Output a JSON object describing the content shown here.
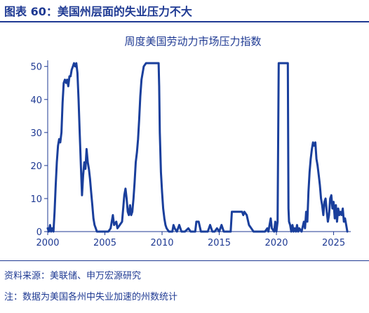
{
  "figure": {
    "title": "图表 60：美国州层面的失业压力不大",
    "source": "资料来源：美联储、申万宏源研究",
    "note": "注：数据为美国各州中失业加速的州数统计",
    "accent_color": "#1f3a93",
    "line_color": "#1a3f9c"
  },
  "chart_data": {
    "type": "line",
    "title": "周度美国劳动力市场压力指数",
    "xlabel": "",
    "ylabel": "",
    "xlim": [
      2000,
      2026.5
    ],
    "ylim": [
      0,
      51
    ],
    "x_ticks": [
      2000,
      2005,
      2010,
      2015,
      2020,
      2025
    ],
    "y_ticks": [
      0,
      10,
      20,
      30,
      40,
      50
    ],
    "grid": false,
    "series": [
      {
        "name": "",
        "points": [
          [
            2000.0,
            1
          ],
          [
            2000.1,
            0
          ],
          [
            2000.2,
            2
          ],
          [
            2000.3,
            0
          ],
          [
            2000.4,
            1
          ],
          [
            2000.5,
            0
          ],
          [
            2000.6,
            6
          ],
          [
            2000.7,
            14
          ],
          [
            2000.8,
            21
          ],
          [
            2000.9,
            26
          ],
          [
            2001.0,
            28
          ],
          [
            2001.1,
            27
          ],
          [
            2001.2,
            30
          ],
          [
            2001.3,
            39
          ],
          [
            2001.4,
            45
          ],
          [
            2001.5,
            46
          ],
          [
            2001.6,
            45
          ],
          [
            2001.7,
            46
          ],
          [
            2001.8,
            44
          ],
          [
            2001.9,
            47
          ],
          [
            2002.0,
            47
          ],
          [
            2002.1,
            49
          ],
          [
            2002.2,
            50
          ],
          [
            2002.3,
            51
          ],
          [
            2002.4,
            50
          ],
          [
            2002.5,
            51
          ],
          [
            2002.6,
            48
          ],
          [
            2002.7,
            40
          ],
          [
            2002.8,
            30
          ],
          [
            2002.9,
            20
          ],
          [
            2003.0,
            11
          ],
          [
            2003.1,
            17
          ],
          [
            2003.2,
            21
          ],
          [
            2003.3,
            19
          ],
          [
            2003.4,
            25
          ],
          [
            2003.5,
            21
          ],
          [
            2003.6,
            19
          ],
          [
            2003.7,
            16
          ],
          [
            2003.8,
            12
          ],
          [
            2003.9,
            8
          ],
          [
            2004.0,
            4
          ],
          [
            2004.1,
            2
          ],
          [
            2004.2,
            1
          ],
          [
            2004.3,
            0
          ],
          [
            2004.6,
            0
          ],
          [
            2005.0,
            0
          ],
          [
            2005.3,
            0
          ],
          [
            2005.5,
            1
          ],
          [
            2005.6,
            3
          ],
          [
            2005.7,
            5
          ],
          [
            2005.8,
            2
          ],
          [
            2006.0,
            3
          ],
          [
            2006.1,
            1
          ],
          [
            2006.3,
            2
          ],
          [
            2006.5,
            3
          ],
          [
            2006.6,
            7
          ],
          [
            2006.7,
            11
          ],
          [
            2006.8,
            13
          ],
          [
            2006.9,
            10
          ],
          [
            2007.0,
            6
          ],
          [
            2007.1,
            5
          ],
          [
            2007.2,
            8
          ],
          [
            2007.3,
            5
          ],
          [
            2007.4,
            6
          ],
          [
            2007.5,
            10
          ],
          [
            2007.6,
            15
          ],
          [
            2007.7,
            21
          ],
          [
            2007.8,
            24
          ],
          [
            2007.9,
            28
          ],
          [
            2008.0,
            34
          ],
          [
            2008.1,
            41
          ],
          [
            2008.2,
            46
          ],
          [
            2008.4,
            50
          ],
          [
            2008.6,
            51
          ],
          [
            2009.0,
            51
          ],
          [
            2009.5,
            51
          ],
          [
            2009.7,
            51
          ],
          [
            2009.75,
            44
          ],
          [
            2009.8,
            30
          ],
          [
            2009.9,
            18
          ],
          [
            2010.0,
            12
          ],
          [
            2010.1,
            7
          ],
          [
            2010.2,
            4
          ],
          [
            2010.3,
            2
          ],
          [
            2010.4,
            1
          ],
          [
            2010.6,
            0
          ],
          [
            2010.9,
            0
          ],
          [
            2011.0,
            2
          ],
          [
            2011.1,
            1
          ],
          [
            2011.3,
            0
          ],
          [
            2011.5,
            2
          ],
          [
            2011.7,
            0
          ],
          [
            2012.0,
            0
          ],
          [
            2012.3,
            1
          ],
          [
            2012.5,
            0
          ],
          [
            2012.9,
            0
          ],
          [
            2013.0,
            3
          ],
          [
            2013.2,
            3
          ],
          [
            2013.4,
            0
          ],
          [
            2013.8,
            0
          ],
          [
            2014.0,
            0
          ],
          [
            2014.2,
            2
          ],
          [
            2014.4,
            0
          ],
          [
            2014.6,
            0
          ],
          [
            2014.8,
            1
          ],
          [
            2015.0,
            0
          ],
          [
            2015.2,
            2
          ],
          [
            2015.4,
            0
          ],
          [
            2015.8,
            0
          ],
          [
            2016.0,
            0
          ],
          [
            2016.1,
            6
          ],
          [
            2016.5,
            6
          ],
          [
            2016.8,
            6
          ],
          [
            2017.0,
            6
          ],
          [
            2017.1,
            5
          ],
          [
            2017.2,
            6
          ],
          [
            2017.4,
            5
          ],
          [
            2017.6,
            2
          ],
          [
            2017.8,
            1
          ],
          [
            2018.0,
            0
          ],
          [
            2018.5,
            0
          ],
          [
            2019.0,
            0
          ],
          [
            2019.2,
            1
          ],
          [
            2019.3,
            0
          ],
          [
            2019.5,
            4
          ],
          [
            2019.6,
            1
          ],
          [
            2019.8,
            0
          ],
          [
            2019.9,
            3
          ],
          [
            2020.0,
            0
          ],
          [
            2020.1,
            3
          ],
          [
            2020.2,
            51
          ],
          [
            2020.6,
            51
          ],
          [
            2020.9,
            51
          ],
          [
            2021.0,
            51
          ],
          [
            2021.05,
            7
          ],
          [
            2021.1,
            3
          ],
          [
            2021.2,
            2
          ],
          [
            2021.3,
            0
          ],
          [
            2021.4,
            2
          ],
          [
            2021.5,
            0
          ],
          [
            2021.6,
            1
          ],
          [
            2021.7,
            0
          ],
          [
            2021.8,
            2
          ],
          [
            2021.9,
            0
          ],
          [
            2022.0,
            1
          ],
          [
            2022.2,
            0
          ],
          [
            2022.4,
            3
          ],
          [
            2022.5,
            1
          ],
          [
            2022.6,
            6
          ],
          [
            2022.7,
            3
          ],
          [
            2022.8,
            12
          ],
          [
            2022.9,
            18
          ],
          [
            2023.0,
            22
          ],
          [
            2023.1,
            25
          ],
          [
            2023.2,
            27
          ],
          [
            2023.3,
            26
          ],
          [
            2023.4,
            27
          ],
          [
            2023.5,
            22
          ],
          [
            2023.6,
            20
          ],
          [
            2023.7,
            17
          ],
          [
            2023.8,
            14
          ],
          [
            2023.9,
            10
          ],
          [
            2024.0,
            8
          ],
          [
            2024.1,
            5
          ],
          [
            2024.2,
            9
          ],
          [
            2024.3,
            10
          ],
          [
            2024.4,
            6
          ],
          [
            2024.5,
            3
          ],
          [
            2024.6,
            5
          ],
          [
            2024.7,
            10
          ],
          [
            2024.8,
            11
          ],
          [
            2024.9,
            7
          ],
          [
            2025.0,
            9
          ],
          [
            2025.1,
            4
          ],
          [
            2025.2,
            8
          ],
          [
            2025.3,
            3
          ],
          [
            2025.4,
            7
          ],
          [
            2025.5,
            5
          ],
          [
            2025.6,
            6
          ],
          [
            2025.7,
            5
          ],
          [
            2025.8,
            7
          ],
          [
            2025.9,
            3
          ],
          [
            2026.0,
            4
          ],
          [
            2026.1,
            2
          ],
          [
            2026.2,
            0
          ]
        ]
      }
    ]
  }
}
